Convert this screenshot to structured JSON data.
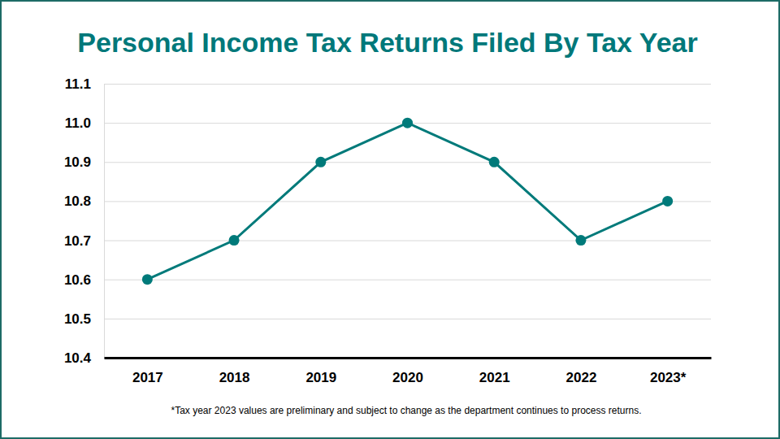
{
  "chart_data": {
    "type": "line",
    "title": "Personal Income Tax Returns Filed By Tax Year",
    "categories": [
      "2017",
      "2018",
      "2019",
      "2020",
      "2021",
      "2022",
      "2023*"
    ],
    "values": [
      10.6,
      10.7,
      10.9,
      11.0,
      10.9,
      10.7,
      10.8
    ],
    "color": "#007a7a",
    "marker": "circle",
    "grid": true,
    "ylim": [
      10.4,
      11.1
    ],
    "yticks": [
      10.4,
      10.5,
      10.6,
      10.7,
      10.8,
      10.9,
      {
        "value": 11,
        "label": "11.0"
      },
      11.1
    ],
    "footnote": "*Tax year 2023 values are preliminary and subject to change as the department continues to process returns."
  }
}
